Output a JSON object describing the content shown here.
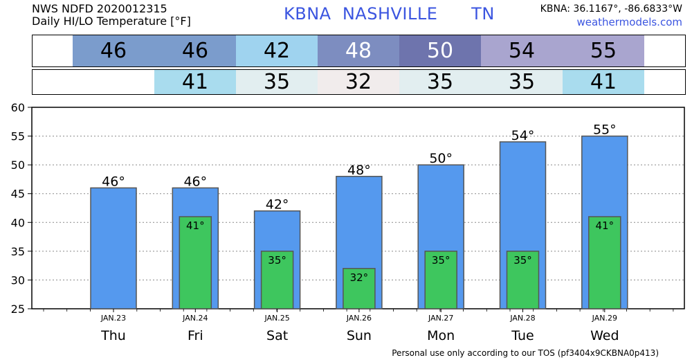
{
  "header": {
    "left_line1": "NWS NDFD 2020012315",
    "left_line2": "Daily HI/LO Temperature [°F]",
    "center": "KBNA  NASHVILLE      TN",
    "coords": "KBNA: 36.1167°, -86.6833°W",
    "site": "weathermodels.com"
  },
  "hi_strip": [
    {
      "value": "46",
      "color": "#7b9ccc"
    },
    {
      "value": "46",
      "color": "#7b9ccc"
    },
    {
      "value": "42",
      "color": "#9fd3ef"
    },
    {
      "value": "48",
      "color": "#7d8dc0"
    },
    {
      "value": "50",
      "color": "#6e74ad"
    },
    {
      "value": "54",
      "color": "#a9a5cf"
    },
    {
      "value": "55",
      "color": "#a9a5cf"
    }
  ],
  "lo_strip": [
    {
      "value": "",
      "color": "#ffffff"
    },
    {
      "value": "41",
      "color": "#a9dcee"
    },
    {
      "value": "35",
      "color": "#e2eef0"
    },
    {
      "value": "32",
      "color": "#f1ecec"
    },
    {
      "value": "35",
      "color": "#e2eef0"
    },
    {
      "value": "35",
      "color": "#e2eef0"
    },
    {
      "value": "41",
      "color": "#a9dcee"
    }
  ],
  "chart_data": {
    "type": "bar",
    "categories": [
      "Thu",
      "Fri",
      "Sat",
      "Sun",
      "Mon",
      "Tue",
      "Wed"
    ],
    "dates": [
      "JAN.23",
      "JAN.24",
      "JAN.25",
      "JAN.26",
      "JAN.27",
      "JAN.28",
      "JAN.29"
    ],
    "series": [
      {
        "values": [
          46,
          46,
          42,
          48,
          50,
          54,
          55
        ],
        "color": "#5599ee"
      },
      {
        "values": [
          null,
          41,
          35,
          32,
          35,
          35,
          41
        ],
        "color": "#3ec65e"
      }
    ],
    "ylim": [
      25,
      60
    ],
    "yticks": [
      25,
      30,
      35,
      40,
      45,
      50,
      55,
      60
    ],
    "grid": true,
    "degree_symbol": "°"
  },
  "footer": "Personal use only according to our TOS (pf3404x9CKBNA0p413)"
}
